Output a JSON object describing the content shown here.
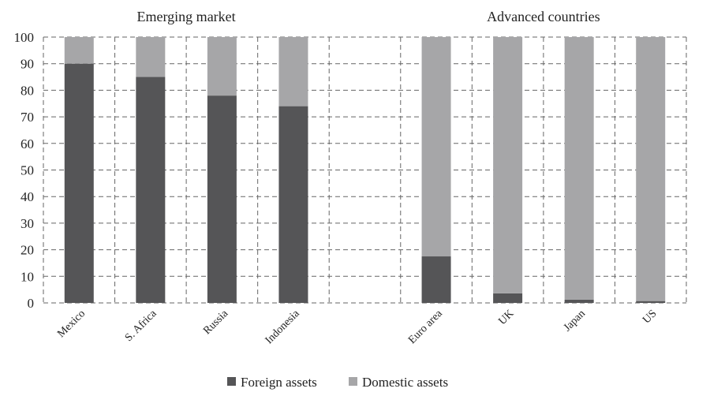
{
  "chart_data": {
    "type": "bar",
    "stacked": true,
    "group_labels": [
      {
        "label": "Emerging market",
        "categories": [
          "Mexico",
          "S. Africa",
          "Russia",
          "Indonesia"
        ]
      },
      {
        "label": "Advanced countries",
        "categories": [
          "Euro area",
          "UK",
          "Japan",
          "US"
        ]
      }
    ],
    "categories": [
      "Mexico",
      "S. Africa",
      "Russia",
      "Indonesia",
      "",
      "Euro area",
      "UK",
      "Japan",
      "US"
    ],
    "series": [
      {
        "name": "Foreign assets",
        "color": "#555557",
        "values": [
          90,
          85,
          78,
          74,
          null,
          17.5,
          3.6,
          1.2,
          0.7
        ]
      },
      {
        "name": "Domestic assets",
        "color": "#a6a6a8",
        "values": [
          10,
          15,
          22,
          26,
          null,
          82.5,
          96.4,
          98.8,
          99.3
        ]
      }
    ],
    "ylim": [
      0,
      100
    ],
    "yticks": [
      0,
      10,
      20,
      30,
      40,
      50,
      60,
      70,
      80,
      90,
      100
    ],
    "grid": true,
    "legend": "bottom-center"
  }
}
